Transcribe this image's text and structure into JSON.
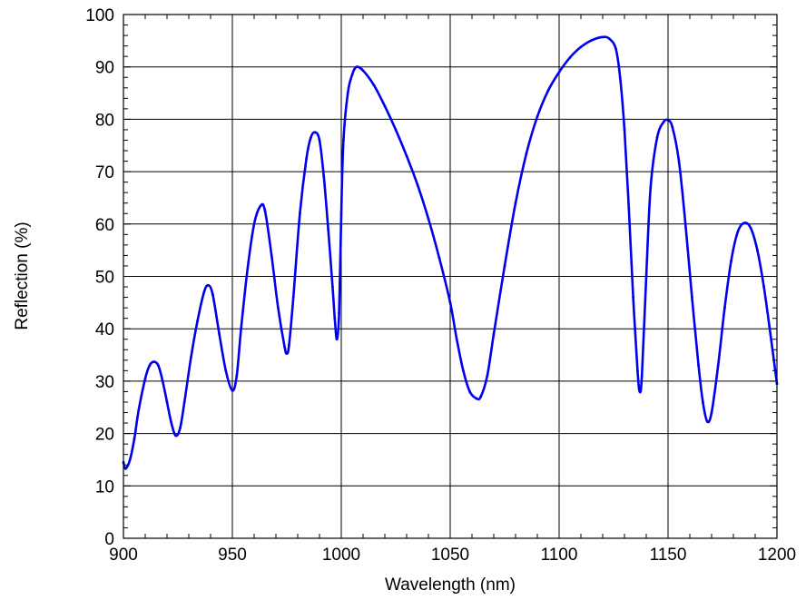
{
  "chart_data": {
    "type": "line",
    "xlabel": "Wavelength (nm)",
    "ylabel": "Reflection (%)",
    "xlim": [
      900,
      1200
    ],
    "ylim": [
      0,
      100
    ],
    "x_ticks": [
      "900",
      "950",
      "1000",
      "1050",
      "1100",
      "1150",
      "1200"
    ],
    "y_ticks": [
      "0",
      "10",
      "20",
      "30",
      "40",
      "50",
      "60",
      "70",
      "80",
      "90",
      "100"
    ],
    "grid": true,
    "line_color": "#0000ee",
    "series": [
      {
        "points": [
          [
            900,
            14.5
          ],
          [
            901,
            13.3
          ],
          [
            903,
            15
          ],
          [
            905,
            19
          ],
          [
            907,
            24.5
          ],
          [
            910,
            30.5
          ],
          [
            912,
            33
          ],
          [
            914,
            33.7
          ],
          [
            916,
            33
          ],
          [
            918,
            30
          ],
          [
            920,
            26
          ],
          [
            922,
            22
          ],
          [
            924,
            19.6
          ],
          [
            926,
            21
          ],
          [
            928,
            26
          ],
          [
            931,
            34.5
          ],
          [
            934,
            41.5
          ],
          [
            937,
            47
          ],
          [
            939,
            48.3
          ],
          [
            941,
            46.5
          ],
          [
            944,
            39
          ],
          [
            947,
            32
          ],
          [
            950,
            28.2
          ],
          [
            952,
            31
          ],
          [
            954,
            40
          ],
          [
            957,
            51.5
          ],
          [
            960,
            60
          ],
          [
            963,
            63.5
          ],
          [
            965,
            62.5
          ],
          [
            968,
            54
          ],
          [
            971,
            44
          ],
          [
            974,
            36.5
          ],
          [
            975,
            35.3
          ],
          [
            976,
            36.8
          ],
          [
            978,
            46
          ],
          [
            981,
            62
          ],
          [
            984,
            72.5
          ],
          [
            986,
            76.5
          ],
          [
            988,
            77.5
          ],
          [
            990,
            76
          ],
          [
            992,
            69
          ],
          [
            994,
            59
          ],
          [
            996,
            48
          ],
          [
            997,
            42
          ],
          [
            998,
            38
          ],
          [
            999,
            43
          ],
          [
            1000,
            62
          ],
          [
            1001,
            76
          ],
          [
            1003,
            85
          ],
          [
            1005,
            88.5
          ],
          [
            1007,
            90
          ],
          [
            1010,
            89.3
          ],
          [
            1015,
            86.5
          ],
          [
            1020,
            82.5
          ],
          [
            1025,
            78
          ],
          [
            1030,
            73
          ],
          [
            1035,
            67.5
          ],
          [
            1040,
            61
          ],
          [
            1045,
            53.5
          ],
          [
            1050,
            45
          ],
          [
            1053,
            38
          ],
          [
            1056,
            32
          ],
          [
            1059,
            28
          ],
          [
            1062,
            26.7
          ],
          [
            1064,
            27
          ],
          [
            1067,
            31
          ],
          [
            1070,
            39
          ],
          [
            1075,
            52
          ],
          [
            1080,
            64
          ],
          [
            1085,
            73.5
          ],
          [
            1090,
            80.5
          ],
          [
            1095,
            85.5
          ],
          [
            1100,
            89
          ],
          [
            1105,
            91.8
          ],
          [
            1110,
            93.8
          ],
          [
            1115,
            95.1
          ],
          [
            1120,
            95.7
          ],
          [
            1123,
            95.4
          ],
          [
            1126,
            93.5
          ],
          [
            1128,
            88
          ],
          [
            1130,
            78
          ],
          [
            1132,
            63
          ],
          [
            1134,
            46
          ],
          [
            1136,
            32
          ],
          [
            1137,
            28
          ],
          [
            1138,
            31
          ],
          [
            1140,
            50
          ],
          [
            1142,
            67
          ],
          [
            1145,
            76.5
          ],
          [
            1148,
            79.5
          ],
          [
            1150,
            79.8
          ],
          [
            1152,
            78.5
          ],
          [
            1155,
            72
          ],
          [
            1158,
            60
          ],
          [
            1161,
            46
          ],
          [
            1164,
            33
          ],
          [
            1166,
            26
          ],
          [
            1168,
            22.3
          ],
          [
            1170,
            24
          ],
          [
            1173,
            33
          ],
          [
            1176,
            44
          ],
          [
            1179,
            53
          ],
          [
            1182,
            58.5
          ],
          [
            1185,
            60.2
          ],
          [
            1188,
            59.2
          ],
          [
            1191,
            55
          ],
          [
            1194,
            48
          ],
          [
            1197,
            39
          ],
          [
            1200,
            29.5
          ]
        ]
      }
    ]
  }
}
